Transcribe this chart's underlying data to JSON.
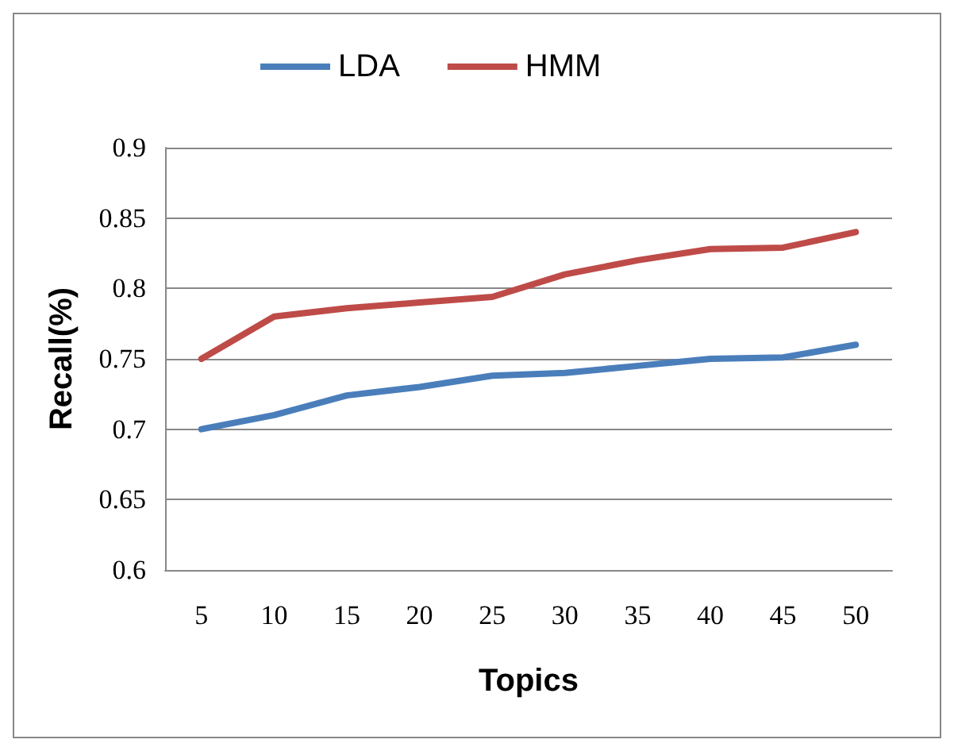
{
  "chart_data": {
    "type": "line",
    "xlabel": "Topics",
    "ylabel": "Recall(%)",
    "categories": [
      "5",
      "10",
      "15",
      "20",
      "25",
      "30",
      "35",
      "40",
      "45",
      "50"
    ],
    "series": [
      {
        "name": "LDA",
        "color": "#4a7ebb",
        "values": [
          0.7,
          0.71,
          0.724,
          0.73,
          0.738,
          0.74,
          0.745,
          0.75,
          0.751,
          0.76
        ]
      },
      {
        "name": "HMM",
        "color": "#be4b48",
        "values": [
          0.75,
          0.78,
          0.786,
          0.79,
          0.794,
          0.81,
          0.82,
          0.828,
          0.829,
          0.84
        ]
      }
    ],
    "ylim": [
      0.6,
      0.9
    ],
    "yticks": [
      0.6,
      0.65,
      0.7,
      0.75,
      0.8,
      0.85,
      0.9
    ],
    "grid": "y",
    "legend": "top",
    "marker": "none",
    "line_style": "solid"
  }
}
